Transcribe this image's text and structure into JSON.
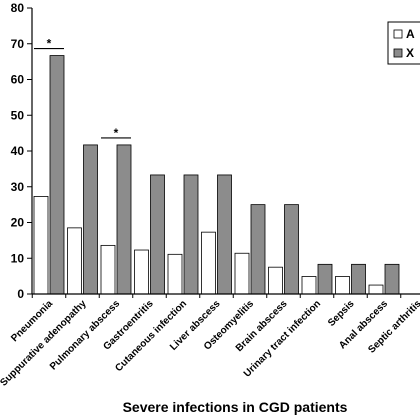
{
  "chart_data": {
    "type": "bar",
    "xlabel": "Severe infections in CGD patients",
    "ylabel": "",
    "ylim": [
      0,
      80
    ],
    "yticks": [
      0,
      10,
      20,
      30,
      40,
      50,
      60,
      70,
      80
    ],
    "categories": [
      "Pneumonia",
      "Suppurative adenopathy",
      "Pulmonary abscess",
      "Gastroentritis",
      "Cutaneous infection",
      "Liver abscess",
      "Osteomyelitis",
      "Brain abscess",
      "Urinary tract infection",
      "Sepsis",
      "Anal abscess",
      "Septic arthritis"
    ],
    "series": [
      {
        "name": "A",
        "color": "#ffffff",
        "values": [
          27.3,
          18.5,
          13.6,
          12.3,
          11.1,
          17.3,
          11.4,
          7.5,
          4.9,
          4.9,
          2.5,
          0
        ]
      },
      {
        "name": "X",
        "color": "#8c8c8c",
        "values": [
          66.7,
          41.7,
          41.7,
          33.3,
          33.3,
          33.3,
          25.0,
          25.0,
          8.3,
          8.3,
          8.3,
          0
        ]
      }
    ],
    "significance": [
      {
        "category": "Pneumonia",
        "label": "*"
      },
      {
        "category": "Pulmonary abscess",
        "label": "*"
      }
    ],
    "legend": {
      "position": "top-right"
    },
    "grid": false
  }
}
